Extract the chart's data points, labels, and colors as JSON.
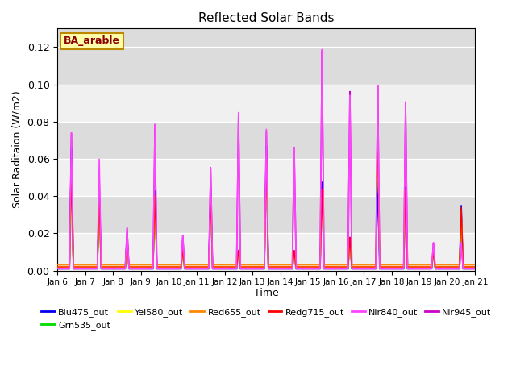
{
  "title": "Reflected Solar Bands",
  "ylabel_text": "Solar Raditaion (W/m2)",
  "annotation": "BA_arable",
  "bg_color": "#dcdcdc",
  "ylim": [
    0,
    0.13
  ],
  "yticks": [
    0.0,
    0.02,
    0.04,
    0.06,
    0.08,
    0.1,
    0.12
  ],
  "day_labels": [
    "Jan 6",
    "Jan 7",
    "Jan 8",
    "Jan 9",
    "Jan 10",
    "Jan 11",
    "Jan 12",
    "Jan 13",
    "Jan 14",
    "Jan 15",
    "Jan 16",
    "Jan 17",
    "Jan 18",
    "Jan 19",
    "Jan 20",
    "Jan 21"
  ],
  "series": [
    {
      "name": "Blu475_out",
      "color": "#0000ee",
      "lw": 1.2,
      "zorder": 3
    },
    {
      "name": "Grn535_out",
      "color": "#00dd00",
      "lw": 1.0,
      "zorder": 4
    },
    {
      "name": "Yel580_out",
      "color": "#ffff00",
      "lw": 1.0,
      "zorder": 5
    },
    {
      "name": "Red655_out",
      "color": "#ff8800",
      "lw": 1.0,
      "zorder": 6
    },
    {
      "name": "Redg715_out",
      "color": "#ff0000",
      "lw": 1.0,
      "zorder": 7
    },
    {
      "name": "Nir840_out",
      "color": "#ff44ff",
      "lw": 1.2,
      "zorder": 8
    },
    {
      "name": "Nir945_out",
      "color": "#cc00cc",
      "lw": 1.2,
      "zorder": 2
    }
  ],
  "peak_data": {
    "Blu475_out": [
      0.0,
      0.066,
      0.0,
      0.04,
      0.0,
      0.018,
      0.0,
      0.043,
      0.0,
      0.011,
      0.0,
      0.043,
      0.0,
      0.011,
      0.0,
      0.068,
      0.0,
      0.01,
      0.0,
      0.048,
      0.0,
      0.018,
      0.0,
      0.048,
      0.0,
      0.045,
      0.0,
      0.01,
      0.0,
      0.035
    ],
    "Grn535_out": [
      0.0,
      0.04,
      0.0,
      0.032,
      0.0,
      0.015,
      0.0,
      0.035,
      0.0,
      0.01,
      0.0,
      0.035,
      0.0,
      0.01,
      0.0,
      0.058,
      0.0,
      0.009,
      0.0,
      0.038,
      0.0,
      0.015,
      0.0,
      0.076,
      0.0,
      0.038,
      0.0,
      0.009,
      0.0,
      0.028
    ],
    "Yel580_out": [
      0.0,
      0.042,
      0.0,
      0.033,
      0.0,
      0.016,
      0.0,
      0.037,
      0.0,
      0.01,
      0.0,
      0.037,
      0.0,
      0.01,
      0.0,
      0.06,
      0.0,
      0.01,
      0.0,
      0.04,
      0.0,
      0.016,
      0.0,
      0.078,
      0.0,
      0.04,
      0.0,
      0.009,
      0.0,
      0.03
    ],
    "Red655_out": [
      0.0,
      0.048,
      0.0,
      0.036,
      0.0,
      0.017,
      0.0,
      0.039,
      0.0,
      0.011,
      0.0,
      0.039,
      0.0,
      0.011,
      0.0,
      0.062,
      0.0,
      0.01,
      0.0,
      0.042,
      0.0,
      0.017,
      0.0,
      0.079,
      0.0,
      0.042,
      0.0,
      0.01,
      0.0,
      0.032
    ],
    "Redg715_out": [
      0.0,
      0.052,
      0.0,
      0.038,
      0.0,
      0.018,
      0.0,
      0.041,
      0.0,
      0.011,
      0.0,
      0.041,
      0.0,
      0.011,
      0.0,
      0.064,
      0.0,
      0.011,
      0.0,
      0.044,
      0.0,
      0.018,
      0.0,
      0.081,
      0.0,
      0.044,
      0.0,
      0.01,
      0.0,
      0.034
    ],
    "Nir840_out": [
      0.0,
      0.074,
      0.0,
      0.06,
      0.0,
      0.023,
      0.0,
      0.079,
      0.0,
      0.019,
      0.0,
      0.056,
      0.0,
      0.086,
      0.0,
      0.077,
      0.0,
      0.067,
      0.0,
      0.12,
      0.0,
      0.095,
      0.0,
      0.1,
      0.0,
      0.091,
      0.0,
      0.015,
      0.0,
      0.015
    ],
    "Nir945_out": [
      0.0,
      0.074,
      0.0,
      0.05,
      0.0,
      0.023,
      0.0,
      0.079,
      0.0,
      0.019,
      0.0,
      0.056,
      0.0,
      0.085,
      0.0,
      0.076,
      0.0,
      0.067,
      0.0,
      0.119,
      0.0,
      0.097,
      0.0,
      0.1,
      0.0,
      0.091,
      0.0,
      0.015,
      0.0,
      0.015
    ]
  },
  "baseline": {
    "Blu475_out": 0.001,
    "Grn535_out": 0.001,
    "Yel580_out": 0.002,
    "Red655_out": 0.003,
    "Redg715_out": 0.002,
    "Nir840_out": 0.001,
    "Nir945_out": 0.001
  }
}
